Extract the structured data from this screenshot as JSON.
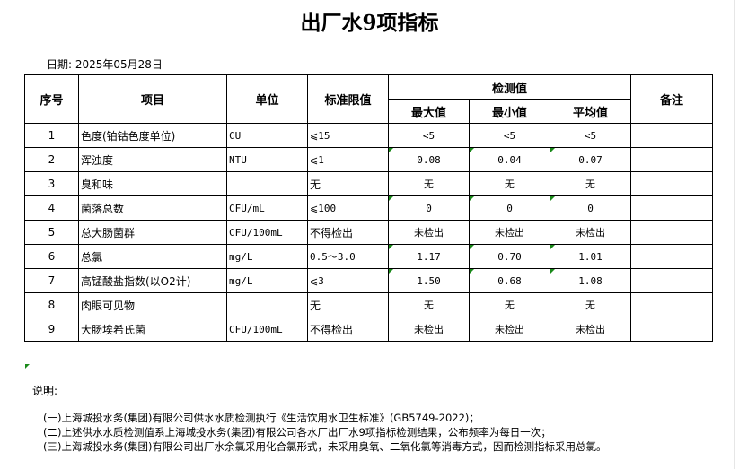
{
  "title": "出厂水9项指标",
  "date": "日期: 2025年05月28日",
  "headers": {
    "no": "序号",
    "item": "项目",
    "unit": "单位",
    "limit": "标准限值",
    "measured": "检测值",
    "max": "最大值",
    "min": "最小值",
    "avg": "平均值",
    "remark": "备注"
  },
  "rows": [
    {
      "no": "1",
      "item": "色度(铂钴色度单位)",
      "unit": "CU",
      "limit": "⩽15",
      "max": "<5",
      "min": "<5",
      "avg": "<5",
      "remark": ""
    },
    {
      "no": "2",
      "item": "浑浊度",
      "unit": "NTU",
      "limit": "⩽1",
      "max": "0.08",
      "min": "0.04",
      "avg": "0.07",
      "remark": ""
    },
    {
      "no": "3",
      "item": "臭和味",
      "unit": "",
      "limit": "无",
      "max": "无",
      "min": "无",
      "avg": "无",
      "remark": ""
    },
    {
      "no": "4",
      "item": "菌落总数",
      "unit": "CFU/mL",
      "limit": "⩽100",
      "max": "0",
      "min": "0",
      "avg": "0",
      "remark": ""
    },
    {
      "no": "5",
      "item": "总大肠菌群",
      "unit": "CFU/100mL",
      "limit": "不得检出",
      "max": "未检出",
      "min": "未检出",
      "avg": "未检出",
      "remark": ""
    },
    {
      "no": "6",
      "item": "总氯",
      "unit": "mg/L",
      "limit": "0.5～3.0",
      "max": "1.17",
      "min": "0.70",
      "avg": "1.01",
      "remark": ""
    },
    {
      "no": "7",
      "item": "高锰酸盐指数(以O2计)",
      "unit": "mg/L",
      "limit": "⩽3",
      "max": "1.50",
      "min": "0.68",
      "avg": "1.08",
      "remark": ""
    },
    {
      "no": "8",
      "item": "肉眼可见物",
      "unit": "",
      "limit": "无",
      "max": "无",
      "min": "无",
      "avg": "无",
      "remark": ""
    },
    {
      "no": "9",
      "item": "大肠埃希氏菌",
      "unit": "CFU/100mL",
      "limit": "不得检出",
      "max": "未检出",
      "min": "未检出",
      "avg": "未检出",
      "remark": ""
    }
  ],
  "notes": {
    "label": "说明:",
    "items": [
      "(一)上海城投水务(集团)有限公司供水水质检测执行《生活饮用水卫生标准》(GB5749-2022)；",
      "(二)上述供水水质检测值系上海城投水务(集团)有限公司各水厂出厂水9项指标检测结果，公布频率为每日一次；",
      "(三)上海城投水务(集团)有限公司出厂水余氯采用化合氯形式，未采用臭氧、二氧化氯等消毒方式，因而检测指标采用总氯。"
    ]
  },
  "marker_color": "#1a8a1a"
}
